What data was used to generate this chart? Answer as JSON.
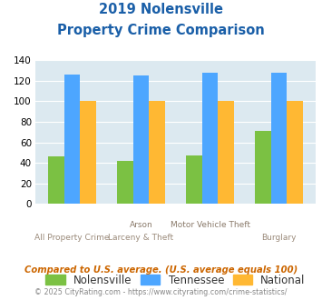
{
  "title_line1": "2019 Nolensville",
  "title_line2": "Property Crime Comparison",
  "cat_labels_top": [
    "",
    "Arson",
    "Motor Vehicle Theft",
    ""
  ],
  "cat_labels_bottom": [
    "All Property Crime",
    "Larceny & Theft",
    "",
    "Burglary"
  ],
  "nolensville": [
    46,
    42,
    47,
    71
  ],
  "tennessee": [
    126,
    125,
    128,
    128
  ],
  "national": [
    100,
    100,
    100,
    100
  ],
  "colors": {
    "nolensville": "#7bc143",
    "tennessee": "#4da6ff",
    "national": "#ffb833"
  },
  "ylim": [
    0,
    140
  ],
  "yticks": [
    0,
    20,
    40,
    60,
    80,
    100,
    120,
    140
  ],
  "plot_bg": "#dce9f0",
  "title_color": "#1a5fa8",
  "xlabel_color_top": "#8a7a6a",
  "xlabel_color_bottom": "#9b8b7b",
  "legend_labels": [
    "Nolensville",
    "Tennessee",
    "National"
  ],
  "footnote": "Compared to U.S. average. (U.S. average equals 100)",
  "copyright": "© 2025 CityRating.com - https://www.cityrating.com/crime-statistics/",
  "footnote_color": "#cc6600",
  "copyright_color": "#888888"
}
